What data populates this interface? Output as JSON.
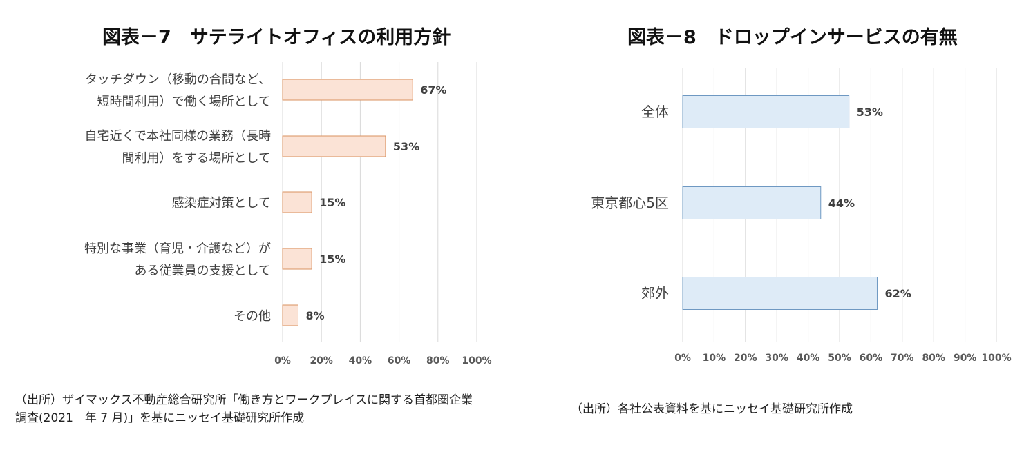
{
  "chart_data": [
    {
      "type": "bar",
      "orientation": "horizontal",
      "title": "図表－7　サテライトオフィスの利用方針",
      "categories": [
        [
          "タッチダウン（移動の合間など、",
          "短時間利用）で働く場所として"
        ],
        [
          "自宅近くで本社同様の業務（長時",
          "間利用）をする場所として"
        ],
        [
          "感染症対策として"
        ],
        [
          "特別な事業（育児・介護など）が",
          "ある従業員の支援として"
        ],
        [
          "その他"
        ]
      ],
      "values": [
        67,
        53,
        15,
        15,
        8
      ],
      "value_labels": [
        "67%",
        "53%",
        "15%",
        "15%",
        "8%"
      ],
      "xlim": [
        0,
        100
      ],
      "ticks": [
        0,
        20,
        40,
        60,
        80,
        100
      ],
      "tick_labels": [
        "0%",
        "20%",
        "40%",
        "60%",
        "80%",
        "100%"
      ],
      "grid": true,
      "bar_fill": "#fbe3d6",
      "bar_stroke": "#d9905f",
      "source": [
        "（出所）ザイマックス不動産総合研究所「働き方とワークプレイスに関する首都圏企業",
        "調査(2021　年 7 月)」を基にニッセイ基礎研究所作成"
      ]
    },
    {
      "type": "bar",
      "orientation": "horizontal",
      "title": "図表－8　ドロップインサービスの有無",
      "categories": [
        [
          "全体"
        ],
        [
          "東京都心5区"
        ],
        [
          "郊外"
        ]
      ],
      "values": [
        53,
        44,
        62
      ],
      "value_labels": [
        "53%",
        "44%",
        "62%"
      ],
      "xlim": [
        0,
        100
      ],
      "ticks": [
        0,
        10,
        20,
        30,
        40,
        50,
        60,
        70,
        80,
        90,
        100
      ],
      "tick_labels": [
        "0%",
        "10%",
        "20%",
        "30%",
        "40%",
        "50%",
        "60%",
        "70%",
        "80%",
        "90%",
        "100%"
      ],
      "grid": true,
      "bar_fill": "#deebf7",
      "bar_stroke": "#6e98c2",
      "source": [
        "（出所）各社公表資料を基にニッセイ基礎研究所作成"
      ]
    }
  ]
}
